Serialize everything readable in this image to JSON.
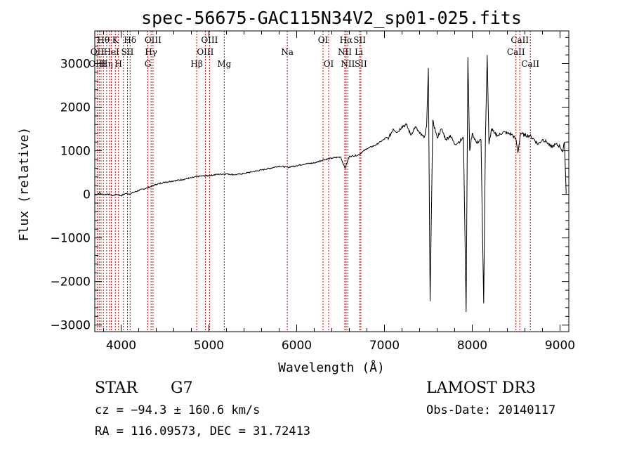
{
  "chart_data": {
    "type": "line",
    "title": "spec-56675-GAC115N34V2_sp01-025.fits",
    "xlabel": "Wavelength (Å)",
    "ylabel": "Flux (relative)",
    "xlim": [
      3700,
      9100
    ],
    "ylim": [
      -3150,
      3750
    ],
    "xticks": [
      4000,
      5000,
      6000,
      7000,
      8000,
      9000
    ],
    "yticks": [
      -3000,
      -2000,
      -1000,
      0,
      1000,
      2000,
      3000
    ],
    "xtick_labels": [
      "4000",
      "5000",
      "6000",
      "7000",
      "8000",
      "9000"
    ],
    "ytick_labels": [
      "−3000",
      "−2000",
      "−1000",
      "0",
      "1000",
      "2000",
      "3000"
    ],
    "series": [
      {
        "name": "spectrum",
        "x": [
          3700,
          3750,
          3800,
          3850,
          3900,
          3950,
          4000,
          4050,
          4100,
          4200,
          4300,
          4400,
          4500,
          4600,
          4700,
          4800,
          4900,
          5000,
          5100,
          5200,
          5300,
          5400,
          5500,
          5600,
          5700,
          5800,
          5900,
          6000,
          6100,
          6200,
          6300,
          6400,
          6500,
          6550,
          6600,
          6700,
          6800,
          6900,
          7000,
          7050,
          7100,
          7150,
          7200,
          7250,
          7300,
          7350,
          7400,
          7450,
          7480,
          7500,
          7520,
          7550,
          7600,
          7650,
          7700,
          7750,
          7800,
          7850,
          7900,
          7930,
          7950,
          7970,
          8000,
          8050,
          8100,
          8130,
          8150,
          8170,
          8190,
          8220,
          8250,
          8300,
          8350,
          8400,
          8450,
          8500,
          8520,
          8550,
          8600,
          8650,
          8700,
          8750,
          8800,
          8850,
          8900,
          8950,
          9000,
          9030,
          9050,
          9070
        ],
        "y": [
          -20,
          30,
          -10,
          10,
          -30,
          0,
          -30,
          20,
          10,
          90,
          150,
          230,
          280,
          310,
          340,
          380,
          420,
          430,
          460,
          470,
          450,
          480,
          520,
          560,
          600,
          650,
          620,
          660,
          700,
          720,
          790,
          830,
          860,
          600,
          870,
          900,
          1050,
          1130,
          1270,
          1300,
          1500,
          1430,
          1560,
          1600,
          1360,
          1550,
          1400,
          1300,
          1550,
          2900,
          -2450,
          1700,
          1300,
          1500,
          1260,
          1350,
          1150,
          1210,
          1290,
          -2700,
          3150,
          1000,
          1400,
          1180,
          1250,
          -2500,
          1300,
          3200,
          1150,
          1500,
          1400,
          1350,
          1430,
          1400,
          1380,
          1250,
          950,
          1400,
          1350,
          1350,
          1270,
          1150,
          1260,
          1200,
          1080,
          1150,
          1100,
          980,
          1200,
          0
        ]
      }
    ],
    "vlines": [
      3727,
      3750,
      3771,
      3798,
      3835,
      3869,
      3889,
      3934,
      3970,
      4026,
      4072,
      4102,
      4304,
      4341,
      4363,
      4861,
      4959,
      5007,
      5175,
      5893,
      6300,
      6364,
      6548,
      6563,
      6583,
      6717,
      6731,
      8498,
      8542,
      8662
    ],
    "vline_color": "#cc0000",
    "line_labels": [
      {
        "text": "Hθ",
        "x": 3798,
        "row": 1
      },
      {
        "text": "K",
        "x": 3934,
        "row": 1
      },
      {
        "text": "Hδ",
        "x": 4102,
        "row": 1
      },
      {
        "text": "OIII",
        "x": 4363,
        "row": 1
      },
      {
        "text": "OIII",
        "x": 5007,
        "row": 1
      },
      {
        "text": "OI",
        "x": 6300,
        "row": 1
      },
      {
        "text": "Hα",
        "x": 6563,
        "row": 1
      },
      {
        "text": "SII",
        "x": 6717,
        "row": 1
      },
      {
        "text": "CaII",
        "x": 8542,
        "row": 1
      },
      {
        "text": "OII",
        "x": 3727,
        "row": 2
      },
      {
        "text": "HeI",
        "x": 3889,
        "row": 2
      },
      {
        "text": "SII",
        "x": 4072,
        "row": 2
      },
      {
        "text": "Hγ",
        "x": 4341,
        "row": 2
      },
      {
        "text": "OIII",
        "x": 4959,
        "row": 2
      },
      {
        "text": "Na",
        "x": 5893,
        "row": 2
      },
      {
        "text": "NII",
        "x": 6548,
        "row": 2
      },
      {
        "text": "Li",
        "x": 6708,
        "row": 2
      },
      {
        "text": "CaII",
        "x": 8498,
        "row": 2
      },
      {
        "text": "OIII",
        "x": 3727,
        "row": 3
      },
      {
        "text": "Hη",
        "x": 3835,
        "row": 3
      },
      {
        "text": "H",
        "x": 3970,
        "row": 3
      },
      {
        "text": "G",
        "x": 4304,
        "row": 3
      },
      {
        "text": "Hβ",
        "x": 4861,
        "row": 3
      },
      {
        "text": "Mg",
        "x": 5175,
        "row": 3
      },
      {
        "text": "OI",
        "x": 6364,
        "row": 3
      },
      {
        "text": "NII",
        "x": 6583,
        "row": 3
      },
      {
        "text": "SII",
        "x": 6731,
        "row": 3
      },
      {
        "text": "CaII",
        "x": 8662,
        "row": 3
      }
    ]
  },
  "info": {
    "class_label": "STAR",
    "subclass_label": "G7",
    "survey": "LAMOST DR3",
    "cz_text": "cz = −94.3 ± 160.6 km/s",
    "obs_date": "Obs-Date: 20140117",
    "radec_text": "RA = 116.09573, DEC =  31.72413"
  }
}
